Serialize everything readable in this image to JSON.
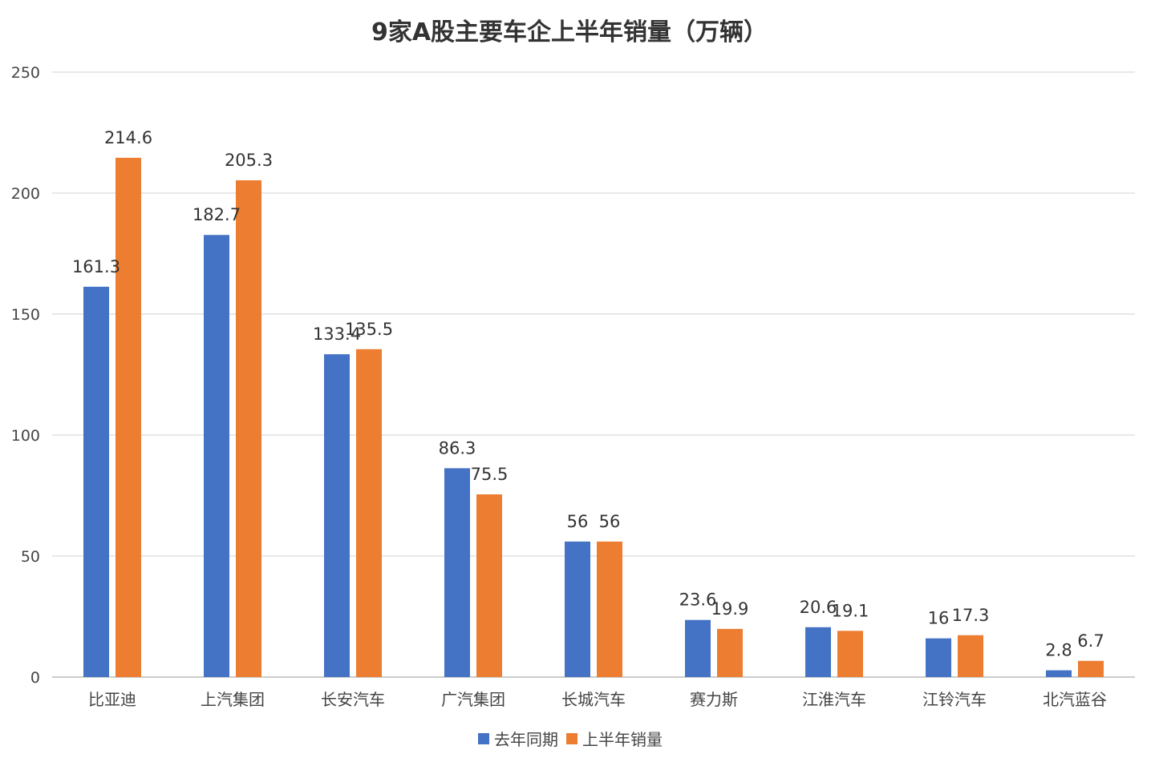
{
  "chart_data": {
    "type": "bar",
    "title": "9家A股主要车企上半年销量（万辆）",
    "xlabel": "",
    "ylabel": "",
    "ylim": [
      0,
      250
    ],
    "yticks": [
      0,
      50,
      100,
      150,
      200,
      250
    ],
    "grid": true,
    "legend_position": "bottom",
    "categories": [
      "比亚迪",
      "上汽集团",
      "长安汽车",
      "广汽集团",
      "长城汽车",
      "赛力斯",
      "江淮汽车",
      "江铃汽车",
      "北汽蓝谷"
    ],
    "series": [
      {
        "name": "去年同期",
        "color": "#4472C4",
        "values": [
          161.3,
          182.7,
          133.4,
          86.3,
          56,
          23.6,
          20.6,
          16,
          2.8
        ]
      },
      {
        "name": "上半年销量",
        "color": "#ED7D31",
        "values": [
          214.6,
          205.3,
          135.5,
          75.5,
          56,
          19.9,
          19.1,
          17.3,
          6.7
        ]
      }
    ]
  }
}
